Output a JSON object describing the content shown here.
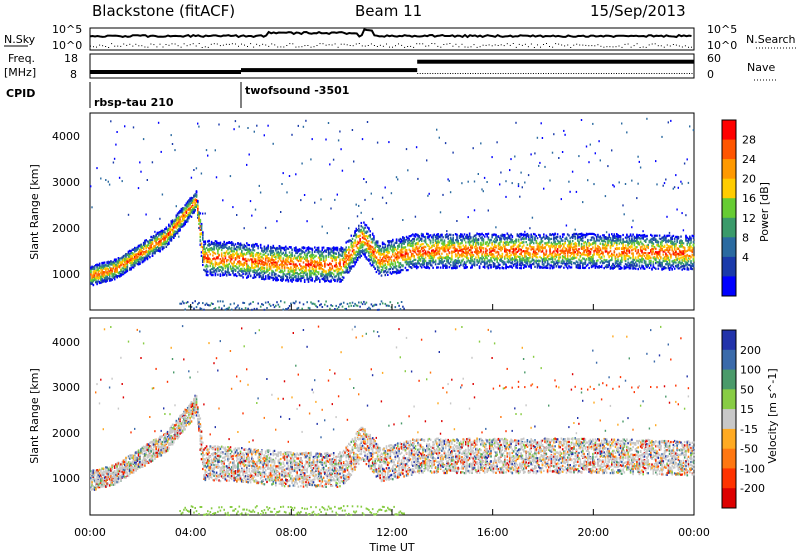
{
  "header": {
    "radar": "Blackstone (fitACF)",
    "beam": "Beam 11",
    "date": "15/Sep/2013"
  },
  "strip": {
    "nsky_label": "N.Sky",
    "nsearch_label": "N.Search",
    "freq_label": "Freq.",
    "freq_unit": "[MHz]",
    "nave_label": "Nave",
    "cpid_label": "CPID",
    "nsky_ticks": [
      "10^5",
      "10^0"
    ],
    "nsearch_ticks": [
      "10^5",
      "10^0"
    ],
    "freq_ticks": [
      "18",
      "8"
    ],
    "nave_ticks": [
      "60",
      "0"
    ],
    "cpid_segments": [
      {
        "start_hour": 0,
        "label": "rbsp-tau 210"
      },
      {
        "start_hour": 6,
        "label": "twofsound -3501"
      }
    ],
    "freq_steps": [
      {
        "start_hour": 0,
        "end_hour": 6,
        "mhz": 10.5
      },
      {
        "start_hour": 6,
        "end_hour": 13,
        "mhz": 11.3
      },
      {
        "start_hour": 13,
        "end_hour": 24,
        "mhz": 14.8
      }
    ]
  },
  "chart_data": [
    {
      "type": "heatmap",
      "name": "power-panel",
      "ylabel": "Slant Range [km]",
      "yticks": [
        "4000",
        "3000",
        "2000",
        "1000"
      ],
      "ylim": [
        180,
        4500
      ],
      "xlim": [
        0,
        24
      ],
      "colorbar_label": "Power [dB]",
      "colorbar_ticks": [
        "28",
        "24",
        "20",
        "16",
        "12",
        "8",
        "4"
      ],
      "colorbar_colors": [
        "#ff0000",
        "#ff5500",
        "#ff9900",
        "#ffcc00",
        "#66cc33",
        "#3a9a6a",
        "#2a6aa0",
        "#1a3aaa",
        "#0000ff"
      ],
      "main_echo": [
        {
          "hour": 0.0,
          "km": 950
        },
        {
          "hour": 1.0,
          "km": 1100
        },
        {
          "hour": 2.0,
          "km": 1450
        },
        {
          "hour": 3.0,
          "km": 1800
        },
        {
          "hour": 4.2,
          "km": 2600
        },
        {
          "hour": 4.5,
          "km": 1350
        },
        {
          "hour": 6.0,
          "km": 1300
        },
        {
          "hour": 8.0,
          "km": 1200
        },
        {
          "hour": 10.0,
          "km": 1200
        },
        {
          "hour": 10.8,
          "km": 1800
        },
        {
          "hour": 11.5,
          "km": 1300
        },
        {
          "hour": 13.0,
          "km": 1500
        },
        {
          "hour": 16.0,
          "km": 1500
        },
        {
          "hour": 20.0,
          "km": 1500
        },
        {
          "hour": 24.0,
          "km": 1450
        }
      ]
    },
    {
      "type": "heatmap",
      "name": "velocity-panel",
      "ylabel": "Slant Range [km]",
      "yticks": [
        "4000",
        "3000",
        "2000",
        "1000"
      ],
      "ylim": [
        180,
        4500
      ],
      "xlim": [
        0,
        24
      ],
      "colorbar_label": "Velocity [m s^-1]",
      "colorbar_ticks": [
        "200",
        "100",
        "50",
        "15",
        "-15",
        "-50",
        "-100",
        "-200"
      ],
      "colorbar_colors": [
        "#2233aa",
        "#3a6aaa",
        "#4a9a6a",
        "#88cc44",
        "#c8c8c8",
        "#ffaa22",
        "#ff7711",
        "#ff3300",
        "#dd0000"
      ]
    }
  ],
  "xaxis": {
    "label": "Time UT",
    "ticks": [
      "00:00",
      "04:00",
      "08:00",
      "12:00",
      "16:00",
      "20:00",
      "00:00"
    ]
  }
}
